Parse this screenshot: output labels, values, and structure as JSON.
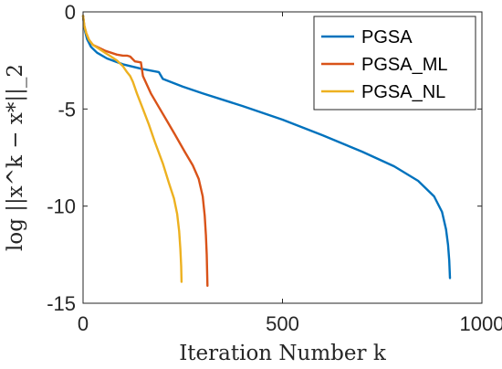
{
  "chart_data": {
    "type": "line",
    "title": "",
    "xlabel": "Iteration Number k",
    "ylabel": "log ||x^k − x*||_2",
    "xlim": [
      0,
      1000
    ],
    "ylim": [
      -15,
      0
    ],
    "xticks": [
      0,
      500,
      1000
    ],
    "yticks": [
      0,
      -5,
      -10,
      -15
    ],
    "xtick_labels": [
      "0",
      "500",
      "1000"
    ],
    "ytick_labels": [
      "0",
      "-5",
      "-10",
      "-15"
    ],
    "grid": false,
    "legend_position": "top-right",
    "series": [
      {
        "name": "PGSA",
        "color": "#0072BD",
        "points": [
          [
            0,
            -0.2
          ],
          [
            2,
            -0.6
          ],
          [
            5,
            -1.0
          ],
          [
            10,
            -1.4
          ],
          [
            20,
            -1.8
          ],
          [
            35,
            -2.1
          ],
          [
            60,
            -2.4
          ],
          [
            100,
            -2.7
          ],
          [
            150,
            -2.95
          ],
          [
            190,
            -3.1
          ],
          [
            200,
            -3.45
          ],
          [
            250,
            -3.85
          ],
          [
            300,
            -4.2
          ],
          [
            400,
            -4.85
          ],
          [
            500,
            -5.55
          ],
          [
            600,
            -6.35
          ],
          [
            700,
            -7.2
          ],
          [
            780,
            -7.95
          ],
          [
            840,
            -8.7
          ],
          [
            880,
            -9.5
          ],
          [
            900,
            -10.3
          ],
          [
            910,
            -11.2
          ],
          [
            915,
            -12.0
          ],
          [
            918,
            -12.8
          ],
          [
            920,
            -13.7
          ]
        ]
      },
      {
        "name": "PGSA_ML",
        "color": "#D95319",
        "points": [
          [
            0,
            -0.2
          ],
          [
            3,
            -0.7
          ],
          [
            8,
            -1.1
          ],
          [
            15,
            -1.45
          ],
          [
            25,
            -1.7
          ],
          [
            40,
            -1.85
          ],
          [
            55,
            -2.0
          ],
          [
            70,
            -2.1
          ],
          [
            85,
            -2.2
          ],
          [
            100,
            -2.25
          ],
          [
            110,
            -2.25
          ],
          [
            118,
            -2.3
          ],
          [
            130,
            -2.55
          ],
          [
            145,
            -2.6
          ],
          [
            150,
            -3.3
          ],
          [
            170,
            -4.2
          ],
          [
            190,
            -4.9
          ],
          [
            210,
            -5.6
          ],
          [
            230,
            -6.3
          ],
          [
            255,
            -7.2
          ],
          [
            275,
            -7.9
          ],
          [
            290,
            -8.6
          ],
          [
            300,
            -9.5
          ],
          [
            305,
            -10.5
          ],
          [
            308,
            -11.5
          ],
          [
            310,
            -12.5
          ],
          [
            311,
            -13.3
          ],
          [
            312,
            -14.1
          ]
        ]
      },
      {
        "name": "PGSA_NL",
        "color": "#EDB120",
        "points": [
          [
            0,
            -0.2
          ],
          [
            3,
            -0.7
          ],
          [
            8,
            -1.1
          ],
          [
            15,
            -1.45
          ],
          [
            25,
            -1.7
          ],
          [
            40,
            -1.9
          ],
          [
            55,
            -2.1
          ],
          [
            70,
            -2.3
          ],
          [
            85,
            -2.5
          ],
          [
            100,
            -2.8
          ],
          [
            110,
            -3.1
          ],
          [
            118,
            -3.3
          ],
          [
            125,
            -3.6
          ],
          [
            135,
            -4.2
          ],
          [
            150,
            -5.0
          ],
          [
            165,
            -5.8
          ],
          [
            180,
            -6.7
          ],
          [
            200,
            -7.8
          ],
          [
            215,
            -8.8
          ],
          [
            228,
            -9.6
          ],
          [
            236,
            -10.4
          ],
          [
            241,
            -11.3
          ],
          [
            244,
            -12.2
          ],
          [
            246,
            -13.1
          ],
          [
            247,
            -13.9
          ]
        ]
      }
    ]
  }
}
